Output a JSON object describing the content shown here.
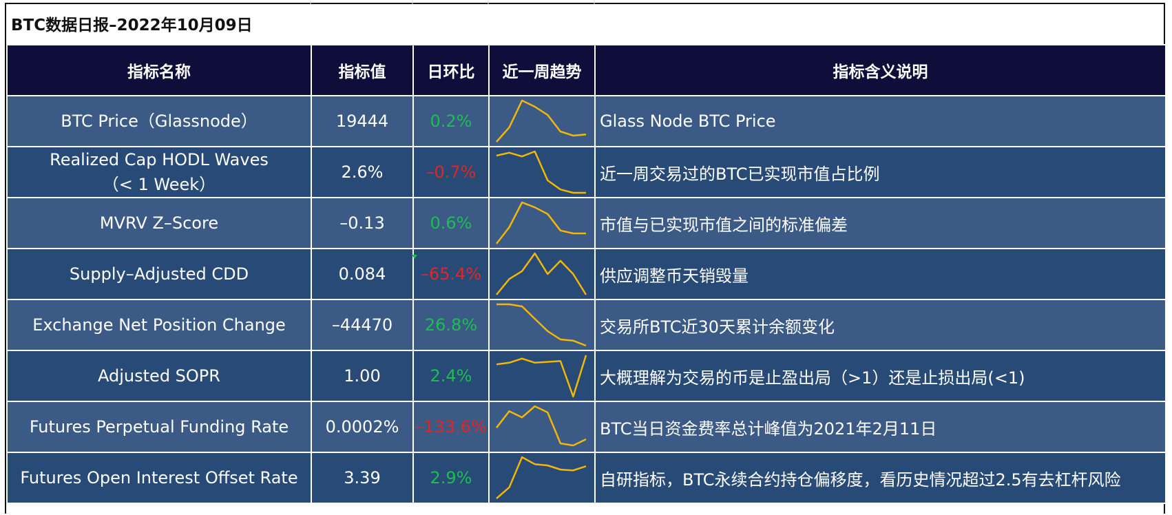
{
  "title": "BTC数据日报–2022年10月09日",
  "columns": [
    "指标名称",
    "指标值",
    "日环比",
    "近一周趋势",
    "指标含义说明"
  ],
  "colors": {
    "header_bg": "#0f0d3a",
    "row_light": "#3b5a86",
    "row_dark": "#284a77",
    "up": "#1dbd52",
    "down": "#e02626",
    "sparkline": "#f5b800"
  },
  "rows": [
    {
      "name": "BTC Price（Glassnode）",
      "value": "19444",
      "change": "0.2%",
      "direction": "up",
      "description": "Glass Node BTC Price",
      "trend": [
        0,
        0.35,
        1.0,
        0.85,
        0.65,
        0.25,
        0.15,
        0.18
      ]
    },
    {
      "name_line1": "Realized Cap HODL Waves",
      "name_line2": "（< 1 Week）",
      "value": "2.6%",
      "change": "–0.7%",
      "direction": "down",
      "description": "近一周交易过的BTC已实现市值占比例",
      "trend": [
        0.9,
        0.97,
        0.88,
        1.0,
        0.3,
        0.08,
        0.0,
        0.0
      ]
    },
    {
      "name": "MVRV Z–Score",
      "value": "–0.13",
      "change": "0.6%",
      "direction": "up",
      "description": "市值与已实现市值之间的标准偏差",
      "trend": [
        0,
        0.4,
        1.0,
        0.88,
        0.72,
        0.32,
        0.25,
        0.25
      ]
    },
    {
      "name": "Supply–Adjusted CDD",
      "value": "0.084",
      "change": "–65.4%",
      "direction": "down",
      "description": "供应调整币天销毁量",
      "trend": [
        0,
        0.38,
        0.57,
        1.0,
        0.5,
        0.82,
        0.5,
        0.0
      ]
    },
    {
      "name": "Exchange Net Position Change",
      "value": "–44470",
      "change": "26.8%",
      "direction": "up",
      "description": "交易所BTC近30天累计余额变化",
      "trend": [
        1.0,
        1.0,
        0.95,
        0.65,
        0.35,
        0.15,
        0.12,
        0.0
      ]
    },
    {
      "name": "Adjusted SOPR",
      "value": "1.00",
      "change": "2.4%",
      "direction": "up",
      "description": "大概理解为交易的币是止盈出局（>1）还是止损出局(<1)",
      "trend": [
        0.78,
        0.82,
        0.92,
        0.82,
        0.84,
        0.86,
        0.0,
        1.0
      ]
    },
    {
      "name": "Futures Perpetual Funding Rate",
      "value": "0.0002%",
      "change": "–133.6%",
      "direction": "down",
      "description": "BTC当日资金费率总计峰值为2021年2月11日",
      "trend": [
        0.48,
        0.88,
        0.73,
        1.0,
        0.85,
        0.1,
        0.05,
        0.2
      ]
    },
    {
      "name": "Futures Open Interest  Offset Rate",
      "value": "3.39",
      "change": "2.9%",
      "direction": "up",
      "description": "自研指标，BTC永续合约持仓偏移度，看历史情况超过2.5有去杠杆风险",
      "trend": [
        0,
        0.27,
        1.0,
        0.83,
        0.8,
        0.7,
        0.68,
        0.78
      ]
    }
  ]
}
